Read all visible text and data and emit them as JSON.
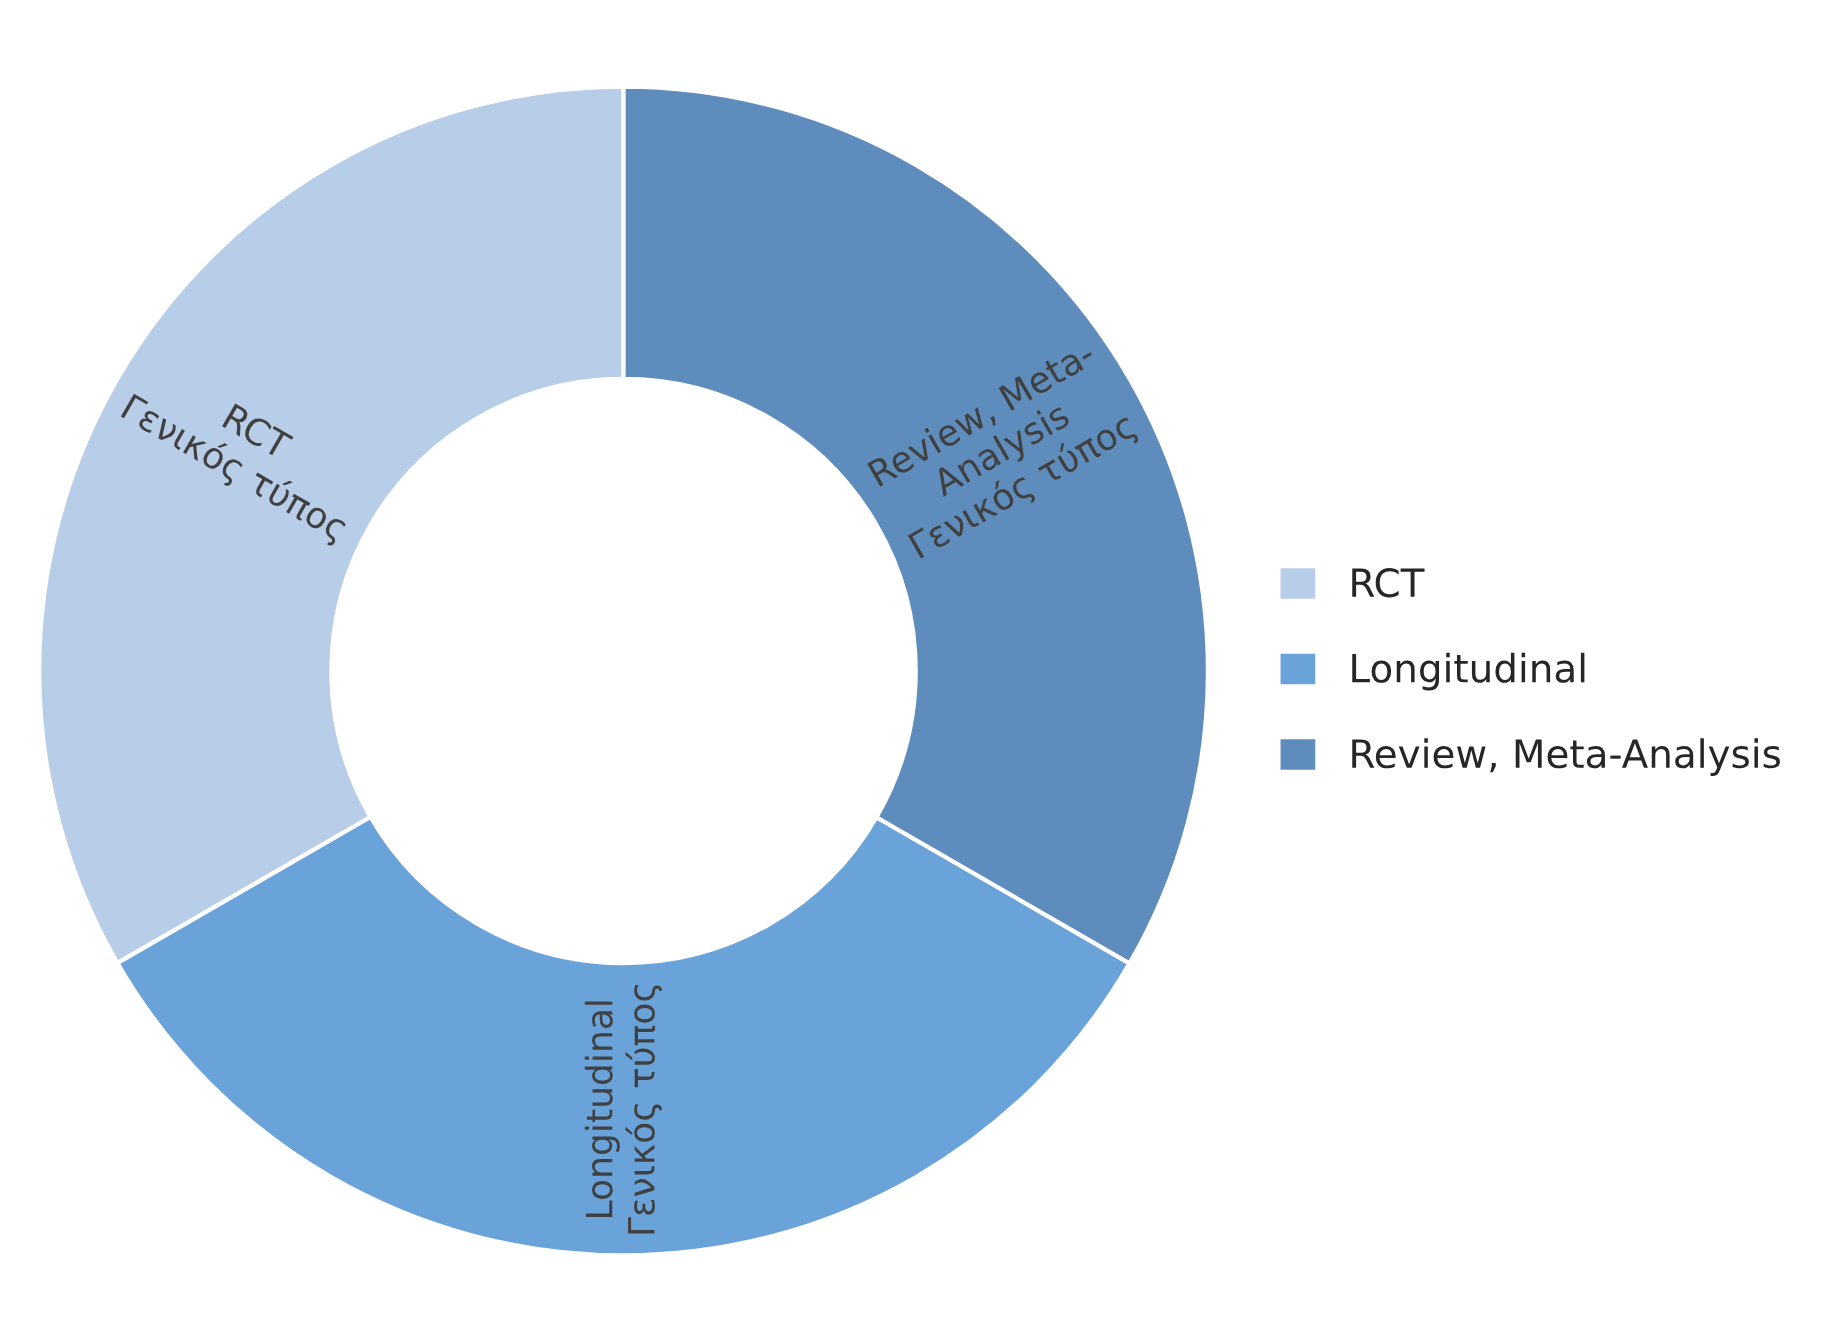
{
  "chart_data": {
    "type": "donut",
    "categories": [
      "RCT",
      "Longitudinal",
      "Review, Meta-Analysis"
    ],
    "values": [
      33.33,
      33.33,
      33.34
    ],
    "colors": [
      "#b8cde8",
      "#6aa3da",
      "#5e8dbd"
    ],
    "value_labels": [
      "RCT\nΓενικός τύπος",
      "Longitudinal\nΓενικός τύπος",
      "Review, Meta-\nAnalysis\nΓενικός τύπος"
    ],
    "legend": "right"
  }
}
